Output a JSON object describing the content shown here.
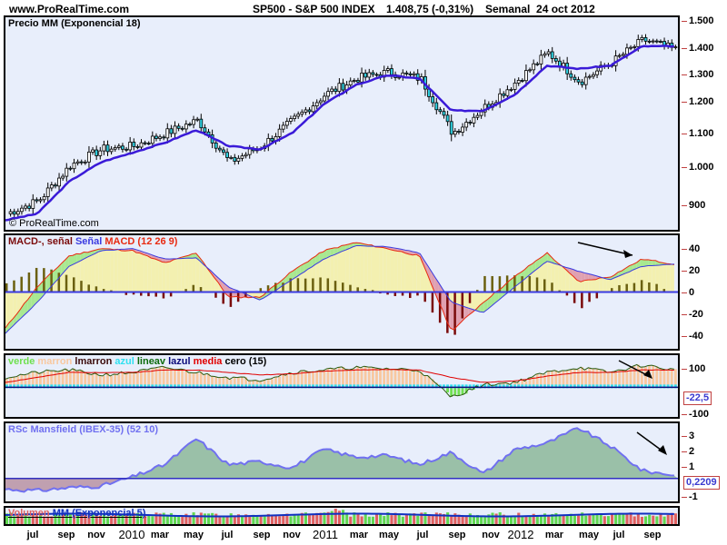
{
  "header": {
    "site": "www.ProRealTime.com",
    "symbol": "SP500 - S&P 500 INDEX",
    "quote": "1.408,75 (-0,31%)",
    "period": "Semanal  24 oct 2012"
  },
  "panels": {
    "price": {
      "title": "Precio MM (Exponencial 18)",
      "copyright": "© ProRealTime.com",
      "ticks": [
        "1.500",
        "1.400",
        "1.300",
        "1.200",
        "1.100",
        "1.000",
        "900"
      ]
    },
    "macd": {
      "title_parts": [
        "MACD-, señal ",
        "Señal ",
        "MACD (12 26 9)"
      ],
      "ticks": [
        "40",
        "20",
        "0",
        "-20",
        "-40"
      ]
    },
    "osc": {
      "title_parts": [
        "verde ",
        "marron ",
        "lmarron ",
        "azul ",
        "lineav ",
        "lazul ",
        "media ",
        "cero (15)"
      ],
      "ticks": [
        "100",
        "-100"
      ],
      "value": "-22,5"
    },
    "rsc": {
      "title": "RSc Mansfield (IBEX-35) (52 10)",
      "ticks": [
        "3",
        "2",
        "1",
        "-1"
      ],
      "value": "0,2209"
    },
    "volume": {
      "title_parts": [
        "Volumen ",
        "MM (Exponencial 5)"
      ]
    }
  },
  "xaxis": {
    "labels": [
      "jul",
      "sep",
      "nov",
      "2010",
      "mar",
      "may",
      "jul",
      "sep",
      "nov",
      "2011",
      "mar",
      "may",
      "jul",
      "sep",
      "nov",
      "2012",
      "mar",
      "may",
      "jul",
      "sep"
    ]
  },
  "colors": {
    "panel_bg": "#e8eefb",
    "ema": "#3a1ad8",
    "macd_red": "#e82a10",
    "signal_blue": "#3a3ae0",
    "hist_pos": "#6b6010",
    "hist_neg": "#7a0a0a",
    "fill_green": "#a8e890",
    "fill_yellow": "#f3f0b0",
    "fill_red": "#e0a0b0",
    "osc_orange": "#f8c8a0",
    "osc_green": "#70e050",
    "osc_cyan": "#30e0f0",
    "rsc_line": "#7070f0",
    "vol_up": "#60d850",
    "vol_down": "#e06060",
    "vol_ma": "#1030c0"
  },
  "chart_data": [
    {
      "type": "candlestick",
      "title": "SP500 - S&P 500 INDEX, Semanal, Precio MM (Exponencial 18)",
      "ylim": [
        850,
        1510
      ],
      "yticks": [
        900,
        1000,
        1100,
        1200,
        1300,
        1400,
        1500
      ],
      "x": [
        "2009-06",
        "2009-07",
        "2009-09",
        "2009-11",
        "2010-01",
        "2010-03",
        "2010-05",
        "2010-07",
        "2010-09",
        "2010-11",
        "2011-01",
        "2011-03",
        "2011-05",
        "2011-07",
        "2011-09",
        "2011-11",
        "2012-01",
        "2012-03",
        "2012-05",
        "2012-07",
        "2012-09",
        "2012-10"
      ],
      "close_approx": [
        900,
        940,
        1050,
        1100,
        1110,
        1150,
        1190,
        1060,
        1110,
        1190,
        1270,
        1320,
        1340,
        1320,
        1150,
        1230,
        1310,
        1400,
        1310,
        1370,
        1440,
        1409
      ],
      "ema18_approx": [
        880,
        900,
        1000,
        1060,
        1090,
        1120,
        1160,
        1110,
        1100,
        1150,
        1240,
        1300,
        1330,
        1320,
        1220,
        1220,
        1270,
        1360,
        1350,
        1360,
        1420,
        1420
      ],
      "last": 1408.75,
      "change_pct": -0.31
    },
    {
      "type": "line",
      "title": "MACD (12 26 9)",
      "ylim": [
        -55,
        55
      ],
      "yticks": [
        40,
        20,
        0,
        -20,
        -40
      ],
      "series": [
        {
          "name": "MACD",
          "values": [
            -35,
            5,
            35,
            42,
            40,
            28,
            38,
            -5,
            -5,
            20,
            40,
            48,
            42,
            35,
            -38,
            -10,
            15,
            38,
            10,
            15,
            32,
            27
          ]
        },
        {
          "name": "Señal",
          "values": [
            -40,
            -10,
            25,
            40,
            42,
            32,
            33,
            5,
            -8,
            12,
            32,
            45,
            44,
            38,
            -10,
            -20,
            5,
            30,
            20,
            12,
            25,
            27
          ]
        }
      ]
    },
    {
      "type": "line",
      "title": "verde marron lmarron azul lineav lazul media cero (15)",
      "ylim": [
        -120,
        130
      ],
      "current": -22.5
    },
    {
      "type": "area",
      "title": "RSc Mansfield (IBEX-35) (52 10)",
      "ylim": [
        -1.5,
        3.6
      ],
      "yticks": [
        3,
        2,
        1,
        -1
      ],
      "values": [
        -0.7,
        -0.8,
        -0.6,
        -0.5,
        0.1,
        0.9,
        2.6,
        0.9,
        1.1,
        0.7,
        1.9,
        1.4,
        1.5,
        0.9,
        1.7,
        0.3,
        1.9,
        2.3,
        3.3,
        2.1,
        0.5,
        0.22
      ],
      "current": 0.2209
    },
    {
      "type": "bar",
      "title": "Volumen MM (Exponencial 5)",
      "note": "weekly volume bars, green up / red down, with EMA(5) line"
    }
  ]
}
